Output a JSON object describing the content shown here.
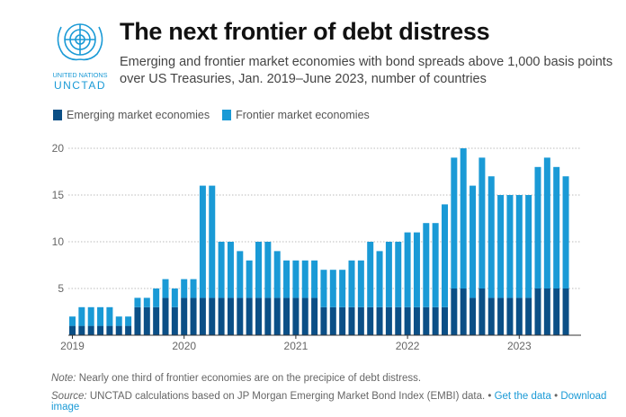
{
  "header": {
    "logo_text_top": "UNITED NATIONS",
    "logo_text_bottom": "UNCTAD",
    "title": "The next frontier of debt distress",
    "subtitle": "Emerging and frontier market economies with bond spreads above 1,000 basis points over US Treasuries, Jan. 2019–June 2023, number of countries"
  },
  "footer": {
    "note_label": "Note:",
    "note_text": " Nearly one third of frontier economies are on the precipice of debt distress.",
    "source_label": "Source:",
    "source_text": " UNCTAD calculations based on JP Morgan Emerging Market Bond Index (EMBI) data.",
    "sep": " • ",
    "link_get_data": "Get the data",
    "link_download": "Download image"
  },
  "colors": {
    "emerging": "#0b4f86",
    "frontier": "#1a9ad6",
    "link": "#1a9ad6"
  },
  "chart_data": {
    "type": "bar",
    "stacked": true,
    "title": "The next frontier of debt distress",
    "xlabel": "",
    "ylabel": "",
    "ylim": [
      0,
      20
    ],
    "yticks": [
      5,
      10,
      15,
      20
    ],
    "xtick_labels": [
      "2019",
      "2020",
      "2021",
      "2022",
      "2023"
    ],
    "grid": "horizontal dotted",
    "legend": "top-left",
    "categories": [
      "2019-01",
      "2019-02",
      "2019-03",
      "2019-04",
      "2019-05",
      "2019-06",
      "2019-07",
      "2019-08",
      "2019-09",
      "2019-10",
      "2019-11",
      "2019-12",
      "2020-01",
      "2020-02",
      "2020-03",
      "2020-04",
      "2020-05",
      "2020-06",
      "2020-07",
      "2020-08",
      "2020-09",
      "2020-10",
      "2020-11",
      "2020-12",
      "2021-01",
      "2021-02",
      "2021-03",
      "2021-04",
      "2021-05",
      "2021-06",
      "2021-07",
      "2021-08",
      "2021-09",
      "2021-10",
      "2021-11",
      "2021-12",
      "2022-01",
      "2022-02",
      "2022-03",
      "2022-04",
      "2022-05",
      "2022-06",
      "2022-07",
      "2022-08",
      "2022-09",
      "2022-10",
      "2022-11",
      "2022-12",
      "2023-01",
      "2023-02",
      "2023-03",
      "2023-04",
      "2023-05",
      "2023-06"
    ],
    "series": [
      {
        "name": "Emerging market economies",
        "values": [
          1,
          1,
          1,
          1,
          1,
          1,
          1,
          3,
          3,
          3,
          4,
          3,
          4,
          4,
          4,
          4,
          4,
          4,
          4,
          4,
          4,
          4,
          4,
          4,
          4,
          4,
          4,
          3,
          3,
          3,
          3,
          3,
          3,
          3,
          3,
          3,
          3,
          3,
          3,
          3,
          3,
          5,
          5,
          4,
          5,
          4,
          4,
          4,
          4,
          4,
          5,
          5,
          5,
          5
        ]
      },
      {
        "name": "Frontier market economies",
        "values": [
          1,
          2,
          2,
          2,
          2,
          1,
          1,
          1,
          1,
          2,
          2,
          2,
          2,
          2,
          12,
          12,
          6,
          6,
          5,
          4,
          6,
          6,
          5,
          4,
          4,
          4,
          4,
          4,
          4,
          4,
          5,
          5,
          7,
          6,
          7,
          7,
          8,
          8,
          9,
          9,
          11,
          14,
          15,
          12,
          14,
          13,
          11,
          11,
          11,
          11,
          13,
          14,
          13,
          12
        ]
      }
    ]
  }
}
